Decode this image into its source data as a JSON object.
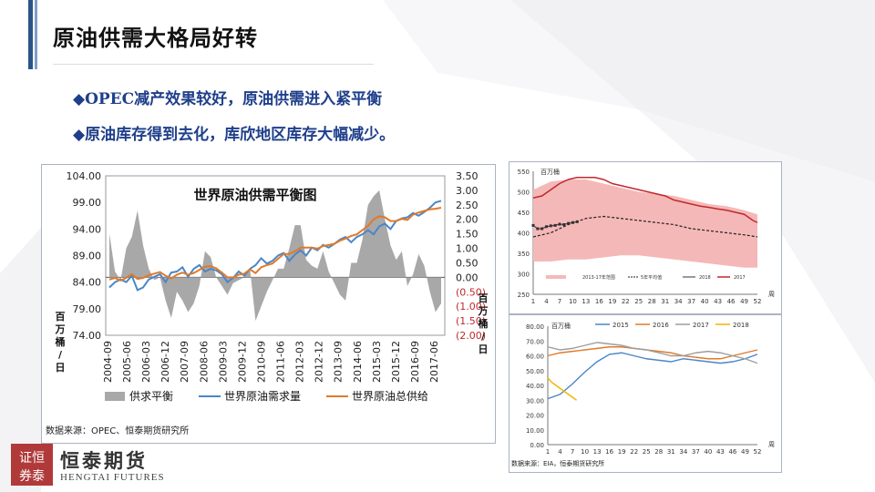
{
  "slide": {
    "title": "原油供需大格局好转",
    "bullets": [
      "◆OPEC减产效果较好，原油供需进入紧平衡",
      "◆原油库存得到去化，库欣地区库存大幅减少。"
    ],
    "logo": {
      "mark": "恒泰",
      "name": "恒泰期货",
      "name_en": "HENGTAI FUTURES"
    }
  },
  "colors": {
    "accent": "#2a5588",
    "bullet": "#1f3f8a",
    "balance_area": "#a8a8a8",
    "demand": "#4a86c8",
    "supply": "#e07a2a",
    "band": "#f5b8b8",
    "line2017": "#c0282d"
  },
  "chart_data": [
    {
      "type": "line",
      "title": "世界原油供需平衡图",
      "x_ticks": [
        "2004-09",
        "2005-06",
        "2006-03",
        "2006-12",
        "2007-09",
        "2008-06",
        "2009-03",
        "2009-12",
        "2010-09",
        "2011-06",
        "2012-03",
        "2012-12",
        "2013-09",
        "2014-06",
        "2015-03",
        "2015-12",
        "2016-09",
        "2017-06"
      ],
      "ylim_left": [
        74,
        104
      ],
      "yticks_left": [
        "104.00",
        "99.00",
        "94.00",
        "89.00",
        "84.00",
        "79.00",
        "74.00"
      ],
      "ylabel_left": "百万桶/日",
      "ylim_right": [
        -2,
        3.5
      ],
      "yticks_right": [
        "3.50",
        "3.00",
        "2.50",
        "2.00",
        "1.50",
        "1.00",
        "0.50",
        "0.00",
        "(0.50)",
        "(1.00)",
        "(1.50)",
        "(2.00)"
      ],
      "ylabel_right": "百万桶/日",
      "legend": [
        "供求平衡",
        "世界原油需求量",
        "世界原油总供给"
      ],
      "legend_position": "bottom",
      "source": "数据来源：OPEC、恒泰期货研究所",
      "series": [
        {
          "name": "供求平衡",
          "type": "area",
          "axis": "right",
          "values": [
            1.5,
            0.2,
            -0.1,
            1.0,
            1.4,
            2.3,
            1.1,
            0.3,
            -0.1,
            0.0,
            -0.8,
            -1.4,
            -0.5,
            -0.8,
            -1.2,
            -0.9,
            -0.3,
            0.9,
            0.7,
            0.0,
            -0.3,
            -0.6,
            -0.2,
            -0.1,
            0.0,
            0.3,
            -1.5,
            -1.0,
            -0.5,
            -0.1,
            0.3,
            0.3,
            1.0,
            1.8,
            1.8,
            0.6,
            0.4,
            0.3,
            0.9,
            0.2,
            -0.2,
            -0.6,
            -0.8,
            0.5,
            0.5,
            1.3,
            2.5,
            2.8,
            3.0,
            2.0,
            1.1,
            0.6,
            0.9,
            -0.3,
            0.1,
            0.8,
            0.4,
            -0.5,
            -1.2,
            -0.9
          ]
        },
        {
          "name": "世界原油需求量",
          "type": "line",
          "axis": "left",
          "values": [
            83.0,
            84.0,
            84.5,
            84.0,
            85.2,
            82.5,
            83.0,
            84.5,
            85.0,
            85.5,
            84.0,
            85.8,
            86.0,
            86.8,
            85.0,
            86.5,
            87.2,
            86.0,
            86.5,
            86.2,
            85.5,
            84.0,
            84.8,
            86.0,
            85.2,
            86.5,
            87.2,
            88.5,
            87.5,
            88.0,
            89.0,
            89.5,
            88.0,
            89.2,
            90.0,
            89.0,
            90.5,
            90.0,
            91.0,
            90.5,
            91.2,
            92.0,
            92.5,
            91.5,
            92.5,
            93.0,
            93.8,
            93.0,
            94.5,
            95.0,
            94.0,
            95.5,
            96.0,
            96.2,
            97.0,
            96.5,
            97.2,
            98.0,
            99.0,
            99.3
          ]
        },
        {
          "name": "世界原油总供给",
          "type": "line",
          "axis": "left",
          "values": [
            84.5,
            84.8,
            84.3,
            84.8,
            85.5,
            84.6,
            84.8,
            85.3,
            85.6,
            85.9,
            85.2,
            84.7,
            85.4,
            85.8,
            85.4,
            85.7,
            86.3,
            86.9,
            87.0,
            86.6,
            85.8,
            84.9,
            84.9,
            85.4,
            85.6,
            86.4,
            85.7,
            86.8,
            87.2,
            87.5,
            88.4,
            89.3,
            89.3,
            89.8,
            90.5,
            90.5,
            90.5,
            90.3,
            90.8,
            91.0,
            91.2,
            91.8,
            92.2,
            92.7,
            93.0,
            93.8,
            94.6,
            95.8,
            96.4,
            96.2,
            95.5,
            95.5,
            95.9,
            95.7,
            96.7,
            97.1,
            97.4,
            97.7,
            97.8,
            98.0
          ]
        }
      ]
    },
    {
      "type": "line",
      "ylabel": "百万桶",
      "ylim": [
        250,
        550
      ],
      "yticks": [
        550,
        500,
        450,
        400,
        350,
        300,
        250
      ],
      "x_ticks": [
        1,
        4,
        7,
        10,
        13,
        16,
        19,
        22,
        25,
        28,
        31,
        34,
        37,
        40,
        43,
        46,
        49,
        52
      ],
      "x_unit": "周",
      "legend": [
        "2013-17年范围",
        "5年平均值",
        "2018",
        "2017"
      ],
      "legend_position": "bottom",
      "series": [
        {
          "name": "2013-17年范围",
          "type": "band",
          "x": [
            1,
            5,
            9,
            13,
            17,
            21,
            25,
            29,
            33,
            37,
            41,
            45,
            49,
            52
          ],
          "low": [
            330,
            330,
            335,
            335,
            340,
            345,
            345,
            340,
            335,
            330,
            325,
            320,
            315,
            315
          ],
          "high": [
            505,
            525,
            530,
            530,
            520,
            510,
            500,
            495,
            490,
            480,
            470,
            465,
            455,
            445
          ]
        },
        {
          "name": "5年平均值",
          "type": "dashed",
          "x": [
            1,
            5,
            9,
            13,
            17,
            21,
            25,
            29,
            33,
            37,
            41,
            45,
            49,
            52
          ],
          "values": [
            390,
            400,
            420,
            435,
            440,
            435,
            430,
            425,
            420,
            410,
            405,
            400,
            395,
            390
          ]
        },
        {
          "name": "2018",
          "type": "markers",
          "x": [
            1,
            2,
            3,
            4,
            5,
            6,
            7,
            8,
            9,
            10,
            11
          ],
          "values": [
            418,
            410,
            410,
            415,
            417,
            418,
            421,
            420,
            423,
            425,
            427
          ]
        },
        {
          "name": "2017",
          "type": "line",
          "x": [
            1,
            3,
            5,
            7,
            9,
            11,
            13,
            15,
            17,
            19,
            21,
            23,
            25,
            27,
            29,
            31,
            33,
            35,
            37,
            39,
            41,
            43,
            45,
            47,
            49,
            51,
            52
          ],
          "values": [
            485,
            490,
            505,
            520,
            530,
            535,
            535,
            535,
            530,
            520,
            515,
            510,
            505,
            500,
            495,
            490,
            480,
            475,
            470,
            465,
            462,
            458,
            455,
            450,
            445,
            430,
            425
          ]
        }
      ]
    },
    {
      "type": "line",
      "ylabel": "百万桶",
      "ylim": [
        0,
        80
      ],
      "yticks": [
        "80.00",
        "70.00",
        "60.00",
        "50.00",
        "40.00",
        "30.00",
        "20.00",
        "10.00",
        "0.00"
      ],
      "x_ticks": [
        1,
        4,
        7,
        10,
        13,
        16,
        19,
        22,
        25,
        28,
        31,
        34,
        37,
        40,
        43,
        46,
        49,
        52
      ],
      "x_unit": "周",
      "legend": [
        "2015",
        "2016",
        "2017",
        "2018"
      ],
      "legend_position": "top",
      "source": "数据来源：EIA，恒泰期货研究所",
      "series": [
        {
          "name": "2015",
          "x": [
            1,
            4,
            7,
            10,
            13,
            16,
            19,
            22,
            25,
            28,
            31,
            34,
            37,
            40,
            43,
            46,
            49,
            52
          ],
          "values": [
            31,
            34,
            41,
            49,
            56,
            61,
            62,
            60,
            58,
            57,
            56,
            58,
            57,
            56,
            55,
            56,
            58,
            61
          ]
        },
        {
          "name": "2016",
          "x": [
            1,
            4,
            7,
            10,
            13,
            16,
            19,
            22,
            25,
            28,
            31,
            34,
            37,
            40,
            43,
            46,
            49,
            52
          ],
          "values": [
            60,
            62,
            63,
            64,
            65,
            66,
            66,
            65,
            64,
            63,
            62,
            60,
            59,
            58,
            58,
            60,
            62,
            64
          ]
        },
        {
          "name": "2017",
          "x": [
            1,
            4,
            7,
            10,
            13,
            16,
            19,
            22,
            25,
            28,
            31,
            34,
            37,
            40,
            43,
            46,
            49,
            52
          ],
          "values": [
            66,
            64,
            65,
            67,
            69,
            68,
            67,
            65,
            64,
            62,
            60,
            60,
            62,
            63,
            62,
            60,
            58,
            55
          ]
        },
        {
          "name": "2018",
          "x": [
            1,
            2,
            3,
            4,
            5,
            6,
            7,
            8
          ],
          "values": [
            45,
            42,
            40,
            38,
            36,
            34,
            32,
            30
          ]
        }
      ]
    }
  ]
}
